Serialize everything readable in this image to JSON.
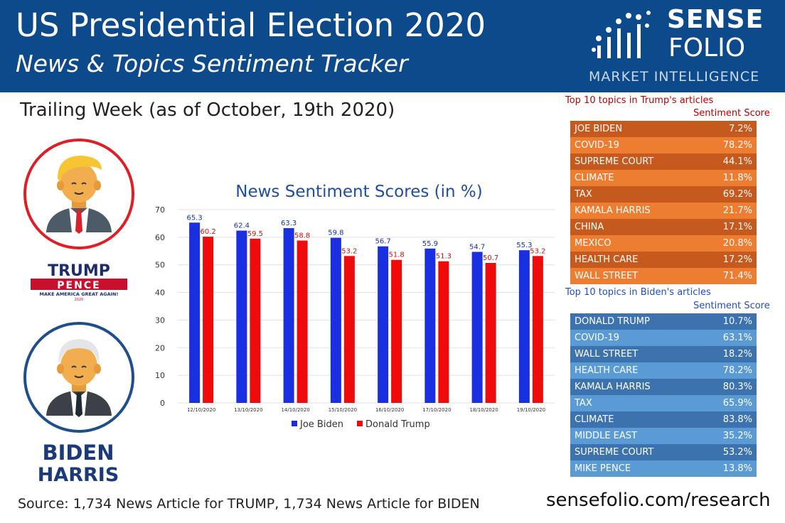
{
  "header": {
    "title": "US Presidential Election 2020",
    "subtitle": "News & Topics Sentiment Tracker",
    "brand_line1": "SENSE",
    "brand_line2": "FOLIO",
    "brand_tagline": "MARKET INTELLIGENCE"
  },
  "trailing_week": "Trailing Week (as of October, 19th 2020)",
  "tickets": {
    "trump_top": "TRUMP",
    "trump_mid": "PENCE",
    "trump_slogan": "MAKE AMERICA GREAT AGAIN!",
    "trump_year": "2020",
    "biden_top": "BIDEN",
    "biden_bottom": "HARRIS"
  },
  "chart_data": {
    "type": "bar",
    "title": "News Sentiment Scores (in %)",
    "categories": [
      "12/10/2020",
      "13/10/2020",
      "14/10/2020",
      "15/10/2020",
      "16/10/2020",
      "17/10/2020",
      "18/10/2020",
      "19/10/2020"
    ],
    "series": [
      {
        "name": "Joe Biden",
        "color": "#1a2fe0",
        "label_color": "#1a2fb0",
        "values": [
          65.3,
          62.4,
          63.3,
          59.8,
          56.7,
          55.9,
          54.7,
          55.3
        ]
      },
      {
        "name": "Donald Trump",
        "color": "#ef0b0b",
        "label_color": "#d01010",
        "values": [
          60.2,
          59.5,
          58.8,
          53.2,
          51.8,
          51.3,
          50.7,
          53.2
        ]
      }
    ],
    "ylim": [
      0,
      70
    ],
    "yticks": [
      0,
      10,
      20,
      30,
      40,
      50,
      60,
      70
    ],
    "grid": true,
    "legend": "bottom"
  },
  "trump_topics": {
    "title": "Top 10 topics in Trump's articles",
    "score_header": "Sentiment Score",
    "rows": [
      {
        "topic": "JOE BIDEN",
        "score": "7.2%"
      },
      {
        "topic": "COVID-19",
        "score": "78.2%"
      },
      {
        "topic": "SUPREME COURT",
        "score": "44.1%"
      },
      {
        "topic": "CLIMATE",
        "score": "11.8%"
      },
      {
        "topic": "TAX",
        "score": "69.2%"
      },
      {
        "topic": "KAMALA HARRIS",
        "score": "21.7%"
      },
      {
        "topic": "CHINA",
        "score": "17.1%"
      },
      {
        "topic": "MEXICO",
        "score": "20.8%"
      },
      {
        "topic": "HEALTH CARE",
        "score": "17.2%"
      },
      {
        "topic": "WALL STREET",
        "score": "71.4%"
      }
    ]
  },
  "biden_topics": {
    "title": "Top 10 topics in Biden's articles",
    "score_header": "Sentiment Score",
    "rows": [
      {
        "topic": "DONALD TRUMP",
        "score": "10.7%"
      },
      {
        "topic": "COVID-19",
        "score": "63.1%"
      },
      {
        "topic": "WALL STREET",
        "score": "18.2%"
      },
      {
        "topic": "HEALTH CARE",
        "score": "78.2%"
      },
      {
        "topic": "KAMALA HARRIS",
        "score": "80.3%"
      },
      {
        "topic": "TAX",
        "score": "65.9%"
      },
      {
        "topic": "CLIMATE",
        "score": "83.8%"
      },
      {
        "topic": "MIDDLE EAST",
        "score": "35.2%"
      },
      {
        "topic": "SUPREME COURT",
        "score": "53.2%"
      },
      {
        "topic": "MIKE PENCE",
        "score": "13.8%"
      }
    ]
  },
  "footer": {
    "source": "Source: 1,734 News Article for TRUMP, 1,734 News Article for BIDEN",
    "site": "sensefolio.com/research"
  }
}
